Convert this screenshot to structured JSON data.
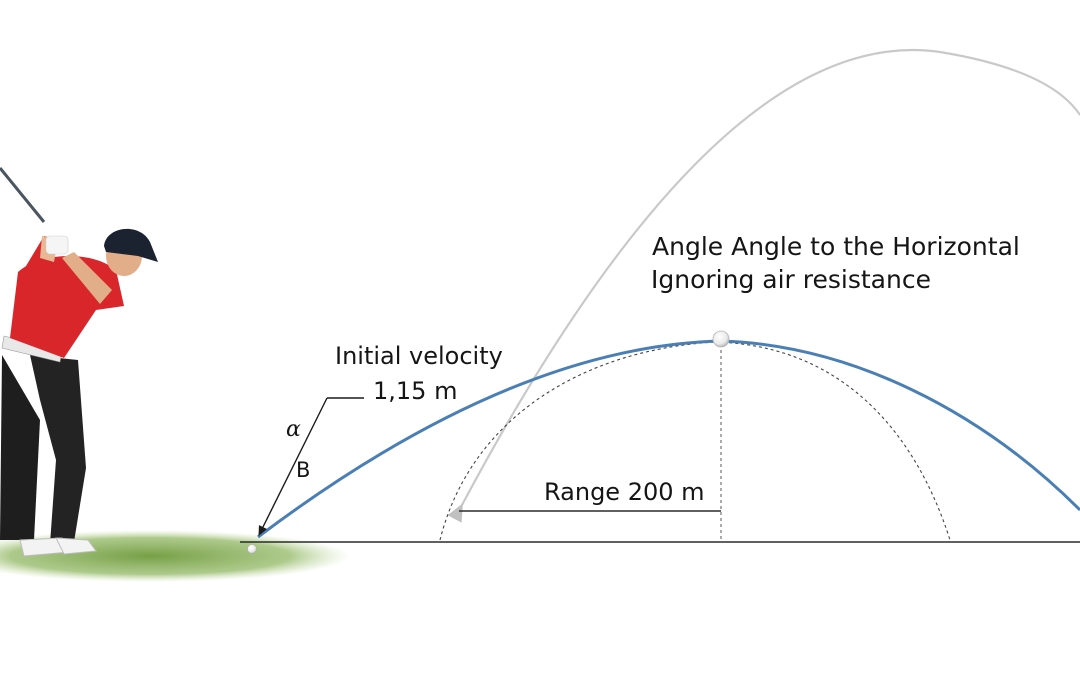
{
  "diagram": {
    "title": "Angle Angle to the Horizontal",
    "note": "Ignoring air resistance",
    "velocity_label": "Initial velocity",
    "velocity_value": "1,15 m",
    "angle_symbol_a": "α",
    "angle_symbol_b": "B",
    "range_label": "Range 200 m"
  },
  "colors": {
    "trajectory": "#4a7fb5",
    "guide_arc": "#c9c9c9",
    "ground_line": "#2b2b2b",
    "grass": "#6f9a3c",
    "shirt": "#d9262a",
    "pants": "#1e1e1e",
    "cap": "#1b2230"
  },
  "icons": {
    "golfer": "golfer-illustration",
    "ball": "golf-ball-icon"
  }
}
